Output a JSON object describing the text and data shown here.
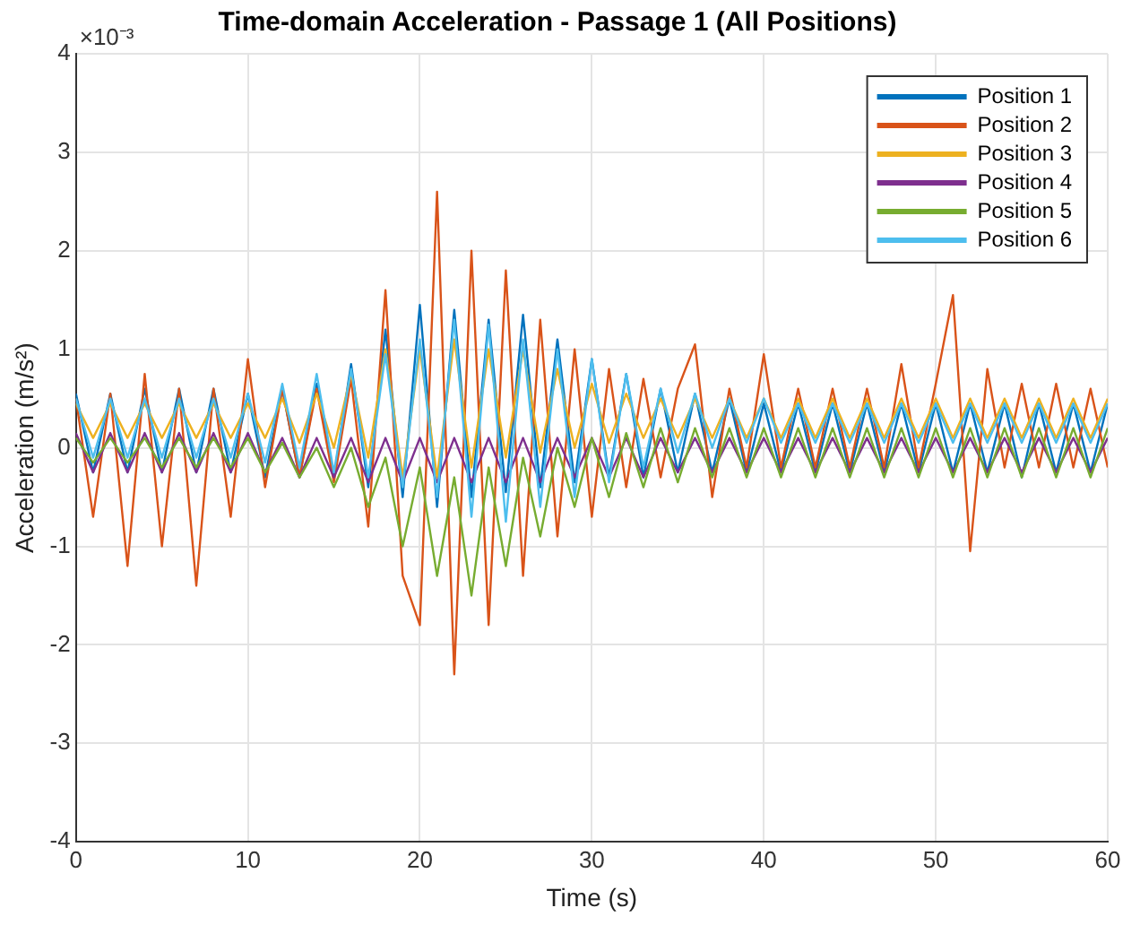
{
  "chart_data": {
    "type": "line",
    "title": "Time-domain Acceleration - Passage 1 (All Positions)",
    "xlabel": "Time (s)",
    "ylabel": "Acceleration (m/s²)",
    "annotations": [
      "×10⁻³"
    ],
    "x": [
      0,
      1,
      2,
      3,
      4,
      5,
      6,
      7,
      8,
      9,
      10,
      11,
      12,
      13,
      14,
      15,
      16,
      17,
      18,
      19,
      20,
      21,
      22,
      23,
      24,
      25,
      26,
      27,
      28,
      29,
      30,
      31,
      32,
      33,
      34,
      35,
      36,
      37,
      38,
      39,
      40,
      41,
      42,
      43,
      44,
      45,
      46,
      47,
      48,
      49,
      50,
      51,
      52,
      53,
      54,
      55,
      56,
      57,
      58,
      59,
      60
    ],
    "series": [
      {
        "name": "Position 1",
        "color": "#0072bd",
        "values": [
          0.55,
          -0.25,
          0.55,
          -0.25,
          0.6,
          -0.25,
          0.6,
          -0.25,
          0.6,
          -0.25,
          0.55,
          -0.3,
          0.6,
          -0.3,
          0.65,
          -0.3,
          0.85,
          -0.4,
          1.2,
          -0.5,
          1.45,
          -0.6,
          1.4,
          -0.5,
          1.3,
          -0.45,
          1.35,
          -0.4,
          1.1,
          -0.35,
          0.9,
          -0.3,
          0.75,
          -0.3,
          0.6,
          -0.25,
          0.55,
          -0.25,
          0.5,
          -0.25,
          0.45,
          -0.25,
          0.45,
          -0.25,
          0.45,
          -0.25,
          0.45,
          -0.25,
          0.45,
          -0.25,
          0.45,
          -0.25,
          0.45,
          -0.25,
          0.45,
          -0.3,
          0.45,
          -0.25,
          0.45,
          -0.25,
          0.45
        ]
      },
      {
        "name": "Position 2",
        "color": "#d95319",
        "values": [
          0.5,
          -0.7,
          0.55,
          -1.2,
          0.75,
          -1.0,
          0.6,
          -1.4,
          0.6,
          -0.7,
          0.9,
          -0.4,
          0.6,
          -0.3,
          0.6,
          -0.35,
          0.7,
          -0.8,
          1.6,
          -1.3,
          -1.8,
          2.6,
          -2.3,
          2.0,
          -1.8,
          1.8,
          -1.3,
          1.3,
          -0.9,
          1.0,
          -0.7,
          0.8,
          -0.4,
          0.7,
          -0.3,
          0.6,
          1.05,
          -0.5,
          0.6,
          -0.2,
          0.95,
          -0.2,
          0.6,
          -0.2,
          0.6,
          -0.2,
          0.6,
          -0.2,
          0.85,
          -0.2,
          0.65,
          1.55,
          -1.05,
          0.8,
          -0.2,
          0.65,
          -0.2,
          0.65,
          -0.2,
          0.6,
          -0.2
        ]
      },
      {
        "name": "Position 3",
        "color": "#edb120",
        "values": [
          0.45,
          0.1,
          0.45,
          0.1,
          0.45,
          0.1,
          0.45,
          0.1,
          0.45,
          0.1,
          0.45,
          0.1,
          0.5,
          0.05,
          0.55,
          0.0,
          0.75,
          -0.1,
          1.0,
          -0.3,
          1.0,
          -0.3,
          1.1,
          -0.2,
          1.0,
          -0.1,
          1.0,
          -0.05,
          0.8,
          0.0,
          0.65,
          0.05,
          0.55,
          0.1,
          0.5,
          0.1,
          0.5,
          0.1,
          0.5,
          0.1,
          0.5,
          0.1,
          0.5,
          0.1,
          0.5,
          0.1,
          0.5,
          0.1,
          0.5,
          0.1,
          0.5,
          0.1,
          0.5,
          0.1,
          0.5,
          0.1,
          0.5,
          0.1,
          0.5,
          0.1,
          0.5
        ]
      },
      {
        "name": "Position 4",
        "color": "#7e2f8e",
        "values": [
          0.15,
          -0.25,
          0.15,
          -0.25,
          0.15,
          -0.25,
          0.15,
          -0.25,
          0.15,
          -0.25,
          0.15,
          -0.25,
          0.1,
          -0.3,
          0.1,
          -0.3,
          0.1,
          -0.35,
          0.1,
          -0.35,
          0.1,
          -0.35,
          0.1,
          -0.35,
          0.1,
          -0.35,
          0.1,
          -0.35,
          0.1,
          -0.3,
          0.1,
          -0.3,
          0.1,
          -0.3,
          0.1,
          -0.25,
          0.1,
          -0.25,
          0.1,
          -0.25,
          0.1,
          -0.25,
          0.1,
          -0.25,
          0.1,
          -0.25,
          0.1,
          -0.25,
          0.1,
          -0.25,
          0.1,
          -0.25,
          0.1,
          -0.25,
          0.1,
          -0.25,
          0.1,
          -0.25,
          0.1,
          -0.25,
          0.1
        ]
      },
      {
        "name": "Position 5",
        "color": "#77ac30",
        "values": [
          0.1,
          -0.15,
          0.1,
          -0.15,
          0.1,
          -0.2,
          0.1,
          -0.2,
          0.1,
          -0.2,
          0.1,
          -0.25,
          0.05,
          -0.3,
          0.0,
          -0.4,
          0.0,
          -0.6,
          -0.1,
          -1.0,
          -0.2,
          -1.3,
          -0.3,
          -1.5,
          -0.2,
          -1.2,
          -0.1,
          -0.9,
          0.0,
          -0.6,
          0.1,
          -0.5,
          0.15,
          -0.4,
          0.2,
          -0.35,
          0.2,
          -0.3,
          0.2,
          -0.3,
          0.2,
          -0.3,
          0.2,
          -0.3,
          0.2,
          -0.3,
          0.2,
          -0.3,
          0.2,
          -0.3,
          0.2,
          -0.3,
          0.2,
          -0.3,
          0.2,
          -0.3,
          0.2,
          -0.3,
          0.2,
          -0.3,
          0.2
        ]
      },
      {
        "name": "Position 6",
        "color": "#4dbeee",
        "values": [
          0.5,
          -0.1,
          0.5,
          -0.1,
          0.5,
          -0.1,
          0.5,
          -0.1,
          0.5,
          -0.1,
          0.55,
          -0.15,
          0.65,
          -0.2,
          0.75,
          -0.25,
          0.8,
          -0.3,
          0.95,
          -0.4,
          1.1,
          -0.5,
          1.3,
          -0.7,
          1.25,
          -0.75,
          1.1,
          -0.6,
          1.0,
          -0.5,
          0.9,
          -0.35,
          0.75,
          -0.2,
          0.6,
          -0.05,
          0.55,
          0.0,
          0.5,
          0.05,
          0.5,
          0.05,
          0.45,
          0.05,
          0.45,
          0.05,
          0.45,
          0.05,
          0.45,
          0.05,
          0.45,
          0.05,
          0.45,
          0.05,
          0.45,
          0.05,
          0.45,
          0.05,
          0.45,
          0.05,
          0.45
        ]
      }
    ],
    "xlim": [
      0,
      60
    ],
    "xticks": [
      0,
      10,
      20,
      30,
      40,
      50,
      60
    ],
    "ylim": [
      -4,
      4
    ],
    "yticks": [
      -4,
      -3,
      -2,
      -1,
      0,
      1,
      2,
      3,
      4
    ],
    "grid": true,
    "legend": "top right",
    "marker": "none",
    "line_style": "solid"
  }
}
